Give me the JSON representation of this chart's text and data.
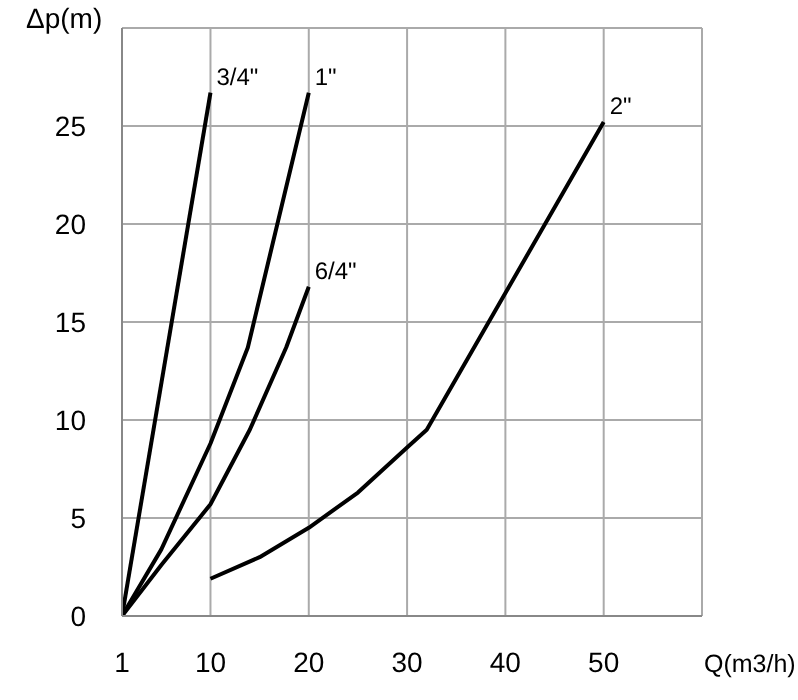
{
  "chart_data": {
    "type": "line",
    "xlabel": "Q(m3/h)",
    "ylabel": "Δp(m)",
    "xlim": [
      1,
      60
    ],
    "xticks": [
      1,
      10,
      20,
      30,
      40,
      50
    ],
    "ylim": [
      0,
      30
    ],
    "yticks": [
      0,
      5,
      10,
      15,
      20,
      25
    ],
    "grid": true,
    "legend": false,
    "marker": "none",
    "line_style": "solid",
    "series": [
      {
        "name": "3/4\"",
        "color": "#000000",
        "x": [
          1,
          10
        ],
        "values": [
          0,
          26.7
        ]
      },
      {
        "name": "1\"",
        "color": "#000000",
        "x": [
          1,
          5,
          10,
          13.8,
          20
        ],
        "values": [
          0,
          3.4,
          8.8,
          13.7,
          26.7
        ]
      },
      {
        "name": "6/4\"",
        "color": "#000000",
        "x": [
          1,
          5,
          10,
          14,
          17.7,
          20
        ],
        "values": [
          0,
          2.6,
          5.7,
          9.5,
          13.7,
          16.8
        ]
      },
      {
        "name": "2\"",
        "color": "#000000",
        "x": [
          10,
          15,
          20,
          25,
          30,
          32,
          50
        ],
        "values": [
          1.9,
          3,
          4.5,
          6.3,
          8.6,
          9.5,
          25.2
        ]
      }
    ]
  }
}
